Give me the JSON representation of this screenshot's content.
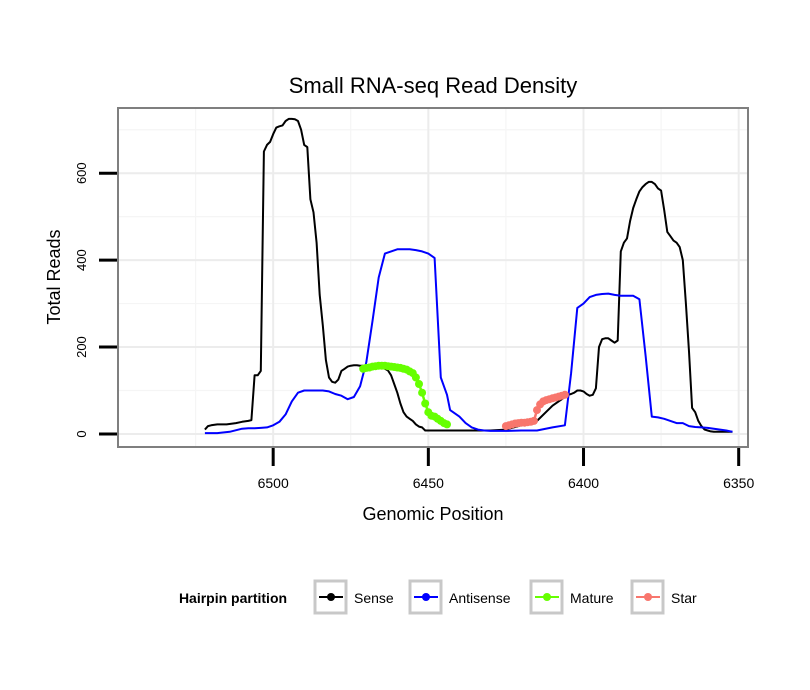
{
  "chart_data": {
    "type": "line",
    "title": "Small RNA-seq Read Density",
    "xlabel": "Genomic Position",
    "ylabel": "Total Reads",
    "xlim": [
      6550,
      6347
    ],
    "x_reversed": true,
    "ylim": [
      -30,
      750
    ],
    "xticks": [
      6500,
      6450,
      6400,
      6350
    ],
    "xtick_labels": [
      "6500",
      "6450",
      "6400",
      "6350"
    ],
    "yticks": [
      0,
      200,
      400,
      600
    ],
    "ytick_labels": [
      "0",
      "200",
      "400",
      "600"
    ],
    "grid": true,
    "legend": {
      "title": "Hairpin partition",
      "position": "bottom",
      "entries": [
        {
          "name": "Sense",
          "color": "#000000"
        },
        {
          "name": "Antisense",
          "color": "#0000ff"
        },
        {
          "name": "Mature",
          "color": "#66ff00"
        },
        {
          "name": "Star",
          "color": "#f8766d"
        }
      ]
    },
    "series": [
      {
        "name": "Sense",
        "color": "#000000",
        "markers": false,
        "x": [
          6522,
          6521,
          6520,
          6518,
          6515,
          6512,
          6510,
          6508,
          6507,
          6506,
          6505,
          6504,
          6503,
          6502,
          6501,
          6500,
          6499,
          6498,
          6497,
          6496,
          6495,
          6494,
          6493,
          6492,
          6491,
          6490,
          6489,
          6488,
          6487,
          6486,
          6485,
          6484,
          6483,
          6482,
          6481,
          6480,
          6479,
          6478,
          6477,
          6476,
          6475,
          6474,
          6473,
          6472,
          6471,
          6470,
          6469,
          6468,
          6467,
          6466,
          6465,
          6464,
          6463,
          6462,
          6461,
          6460,
          6459,
          6458,
          6457,
          6456,
          6455,
          6454,
          6453,
          6452,
          6451,
          6450,
          6449,
          6448,
          6447,
          6446,
          6445,
          6444,
          6443,
          6440,
          6435,
          6430,
          6425,
          6420,
          6415,
          6410,
          6406,
          6405,
          6404,
          6403,
          6402,
          6401,
          6400,
          6399,
          6398,
          6397,
          6396,
          6395,
          6394,
          6393,
          6392,
          6391,
          6390,
          6389,
          6388,
          6387,
          6386,
          6385,
          6384,
          6383,
          6382,
          6381,
          6380,
          6379,
          6378,
          6377,
          6376,
          6375,
          6374,
          6373,
          6372,
          6371,
          6370,
          6369,
          6368,
          6367,
          6366,
          6365,
          6364,
          6363,
          6362,
          6361,
          6360,
          6359,
          6358,
          6357,
          6356,
          6355,
          6354,
          6353,
          6352
        ],
        "y": [
          10,
          18,
          20,
          22,
          22,
          25,
          28,
          30,
          32,
          135,
          135,
          145,
          650,
          665,
          672,
          690,
          705,
          708,
          710,
          720,
          725,
          725,
          724,
          720,
          700,
          665,
          660,
          540,
          510,
          440,
          320,
          250,
          170,
          130,
          120,
          118,
          125,
          145,
          150,
          155,
          157,
          158,
          158,
          157,
          157,
          156,
          155,
          155,
          154,
          153,
          152,
          150,
          146,
          135,
          115,
          95,
          70,
          50,
          40,
          35,
          30,
          22,
          17,
          15,
          8,
          8,
          8,
          8,
          8,
          8,
          8,
          8,
          8,
          8,
          8,
          8,
          10,
          20,
          30,
          65,
          85,
          90,
          92,
          95,
          100,
          100,
          98,
          92,
          88,
          90,
          105,
          200,
          218,
          220,
          220,
          215,
          210,
          215,
          420,
          440,
          450,
          490,
          520,
          540,
          558,
          568,
          575,
          580,
          580,
          575,
          565,
          560,
          515,
          465,
          455,
          445,
          440,
          430,
          400,
          300,
          190,
          60,
          50,
          30,
          18,
          10,
          8,
          6,
          5,
          5,
          5,
          5,
          5,
          5,
          5
        ]
      },
      {
        "name": "Antisense",
        "color": "#0000ff",
        "markers": false,
        "x": [
          6522,
          6518,
          6514,
          6510,
          6508,
          6506,
          6504,
          6502,
          6500,
          6498,
          6496,
          6494,
          6492,
          6490,
          6488,
          6486,
          6484,
          6482,
          6480,
          6478,
          6476,
          6474,
          6472,
          6470,
          6468,
          6466,
          6464,
          6462,
          6460,
          6458,
          6456,
          6454,
          6452,
          6450,
          6448,
          6446,
          6444,
          6443,
          6440,
          6438,
          6436,
          6434,
          6432,
          6430,
          6425,
          6420,
          6415,
          6410,
          6406,
          6404,
          6402,
          6400,
          6398,
          6396,
          6394,
          6392,
          6390,
          6388,
          6386,
          6384,
          6382,
          6380,
          6378,
          6376,
          6374,
          6372,
          6370,
          6368,
          6366,
          6364,
          6362,
          6360,
          6358,
          6356,
          6354,
          6352
        ],
        "y": [
          2,
          2,
          5,
          12,
          13,
          13,
          14,
          15,
          20,
          28,
          45,
          75,
          95,
          100,
          100,
          100,
          100,
          98,
          92,
          88,
          80,
          85,
          110,
          165,
          260,
          360,
          415,
          420,
          425,
          425,
          425,
          423,
          420,
          415,
          405,
          130,
          90,
          55,
          40,
          25,
          15,
          10,
          8,
          7,
          7,
          8,
          8,
          15,
          20,
          140,
          290,
          300,
          315,
          320,
          322,
          323,
          320,
          318,
          318,
          318,
          310,
          180,
          40,
          38,
          35,
          30,
          25,
          25,
          18,
          16,
          15,
          14,
          12,
          10,
          8,
          5
        ]
      },
      {
        "name": "Mature",
        "color": "#66ff00",
        "markers": true,
        "x": [
          6471,
          6470,
          6469,
          6468,
          6467,
          6466,
          6465,
          6464,
          6463,
          6462,
          6461,
          6460,
          6459,
          6458,
          6457,
          6456,
          6455,
          6454,
          6453,
          6452,
          6451,
          6450,
          6449,
          6448,
          6447,
          6446,
          6445,
          6444
        ],
        "y": [
          150,
          152,
          153,
          155,
          156,
          157,
          157,
          157,
          156,
          155,
          154,
          153,
          152,
          150,
          148,
          144,
          140,
          130,
          115,
          95,
          70,
          50,
          42,
          40,
          35,
          30,
          25,
          22
        ]
      },
      {
        "name": "Star",
        "color": "#f8766d",
        "markers": true,
        "x": [
          6425,
          6424,
          6423,
          6422,
          6421,
          6420,
          6419,
          6418,
          6417,
          6416,
          6415,
          6414,
          6413,
          6412,
          6411,
          6410,
          6409,
          6408,
          6407,
          6406
        ],
        "y": [
          18,
          20,
          22,
          24,
          25,
          26,
          26,
          27,
          28,
          30,
          55,
          68,
          75,
          78,
          80,
          82,
          84,
          86,
          88,
          90
        ]
      }
    ]
  }
}
